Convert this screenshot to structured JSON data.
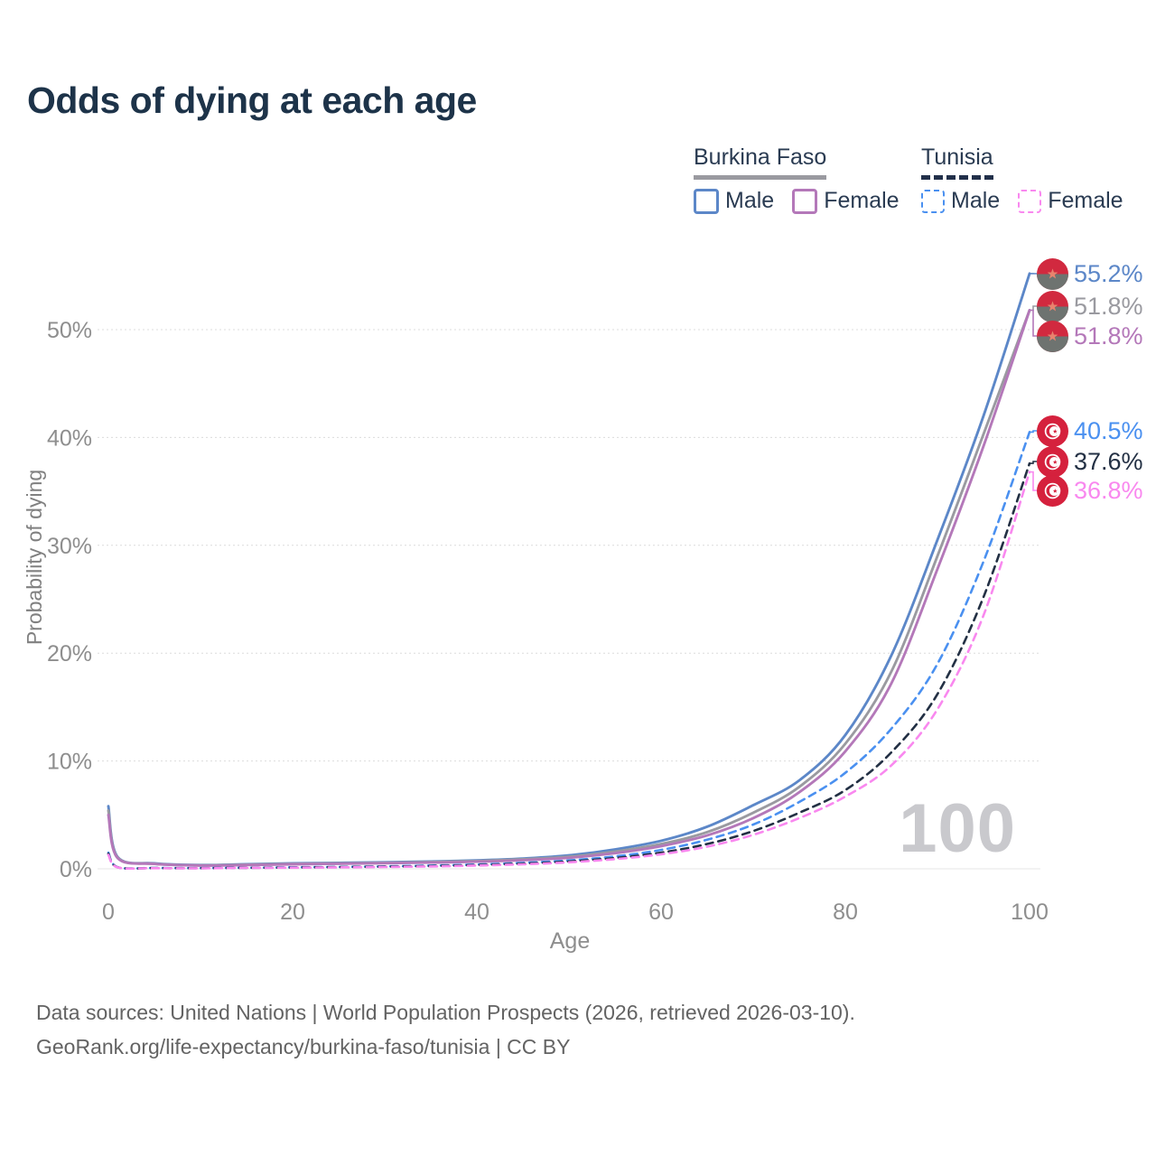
{
  "title": "Odds of dying at each age",
  "legend": {
    "groups": [
      {
        "country": "Burkina Faso",
        "underline_color": "#9a9aa0",
        "underline_style": "solid",
        "items": [
          {
            "label": "Male",
            "color": "#5c87c8",
            "style": "solid"
          },
          {
            "label": "Female",
            "color": "#b478b9",
            "style": "solid"
          }
        ]
      },
      {
        "country": "Tunisia",
        "underline_color": "#22304a",
        "underline_style": "dashed",
        "items": [
          {
            "label": "Male",
            "color": "#4a90f0",
            "style": "dashed"
          },
          {
            "label": "Female",
            "color": "#f988ef",
            "style": "dashed"
          }
        ]
      }
    ]
  },
  "chart_data": {
    "type": "line",
    "title": "Odds of dying at each age",
    "xlabel": "Age",
    "ylabel": "Probability of dying",
    "xlim": [
      0,
      100
    ],
    "ylim": [
      0,
      57
    ],
    "grid": true,
    "xticks": [
      0,
      20,
      40,
      60,
      80,
      100
    ],
    "ytick_values": [
      0,
      10,
      20,
      30,
      40,
      50
    ],
    "ytick_labels": [
      "0%",
      "10%",
      "20%",
      "30%",
      "40%",
      "50%"
    ],
    "age_cursor_label": "100",
    "ages": [
      0,
      1,
      5,
      10,
      15,
      20,
      25,
      30,
      35,
      40,
      45,
      50,
      55,
      60,
      65,
      70,
      75,
      80,
      85,
      90,
      95,
      100
    ],
    "series": [
      {
        "name": "Burkina Faso Male",
        "color": "#5c87c8",
        "dash": "solid",
        "values": [
          5.8,
          1.1,
          0.5,
          0.35,
          0.42,
          0.5,
          0.55,
          0.6,
          0.68,
          0.78,
          0.95,
          1.25,
          1.8,
          2.6,
          3.9,
          5.9,
          8.2,
          12.4,
          19.8,
          30.5,
          42.0,
          55.2
        ]
      },
      {
        "name": "Burkina Faso Total",
        "color": "#9a9aa0",
        "dash": "solid",
        "values": [
          5.4,
          1.05,
          0.47,
          0.32,
          0.38,
          0.45,
          0.5,
          0.55,
          0.62,
          0.72,
          0.88,
          1.12,
          1.6,
          2.3,
          3.4,
          5.2,
          7.6,
          11.6,
          18.3,
          29.0,
          40.3,
          51.8
        ]
      },
      {
        "name": "Burkina Faso Female",
        "color": "#b478b9",
        "dash": "solid",
        "values": [
          5.0,
          1.0,
          0.45,
          0.3,
          0.35,
          0.42,
          0.47,
          0.52,
          0.58,
          0.66,
          0.8,
          1.02,
          1.45,
          2.1,
          3.1,
          4.7,
          7.1,
          10.9,
          17.2,
          27.8,
          39.2,
          51.8
        ]
      },
      {
        "name": "Tunisia Male",
        "color": "#4a90f0",
        "dash": "dashed",
        "values": [
          1.5,
          0.15,
          0.08,
          0.07,
          0.1,
          0.14,
          0.18,
          0.23,
          0.3,
          0.4,
          0.55,
          0.78,
          1.15,
          1.75,
          2.7,
          4.1,
          6.2,
          8.9,
          13.0,
          19.0,
          28.5,
          40.5
        ]
      },
      {
        "name": "Tunisia Total",
        "color": "#233044",
        "dash": "dashed",
        "values": [
          1.4,
          0.14,
          0.07,
          0.06,
          0.09,
          0.12,
          0.16,
          0.2,
          0.26,
          0.35,
          0.48,
          0.68,
          1.0,
          1.5,
          2.3,
          3.5,
          5.2,
          7.3,
          10.8,
          16.2,
          25.2,
          37.6
        ]
      },
      {
        "name": "Tunisia Female",
        "color": "#f988ef",
        "dash": "dashed",
        "values": [
          1.3,
          0.13,
          0.06,
          0.05,
          0.08,
          0.1,
          0.13,
          0.17,
          0.22,
          0.3,
          0.42,
          0.6,
          0.9,
          1.35,
          2.05,
          3.15,
          4.7,
          6.7,
          9.6,
          14.8,
          23.5,
          36.8
        ]
      }
    ]
  },
  "end_labels": [
    {
      "flag": "burkina-faso",
      "value": "55.2%",
      "color": "#5c87c8"
    },
    {
      "flag": "burkina-faso",
      "value": "51.8%",
      "color": "#9a9aa0"
    },
    {
      "flag": "burkina-faso",
      "value": "51.8%",
      "color": "#b478b9"
    },
    {
      "flag": "tunisia",
      "value": "40.5%",
      "color": "#4a90f0"
    },
    {
      "flag": "tunisia",
      "value": "37.6%",
      "color": "#233044"
    },
    {
      "flag": "tunisia",
      "value": "36.8%",
      "color": "#f988ef"
    }
  ],
  "footer": {
    "line1": "Data sources: United Nations | World Population Prospects (2026, retrieved 2026-03-10).",
    "line2": "GeoRank.org/life-expectancy/burkina-faso/tunisia | CC BY"
  },
  "colors": {
    "title": "#1d3349",
    "axis_text": "#8e8e8e",
    "gridline": "#dcdcdc",
    "watermark": "#c9c9cd"
  }
}
